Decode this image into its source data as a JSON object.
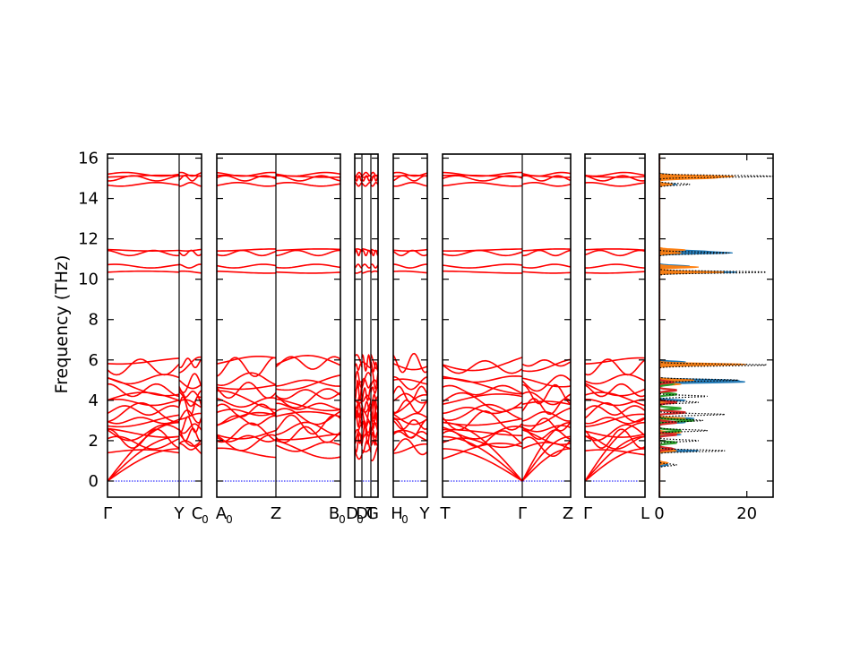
{
  "chart_data": [
    {
      "type": "line",
      "title": "",
      "xlabel": "",
      "ylabel": "Frequency (THz)",
      "ylim": [
        -0.8,
        16.2
      ],
      "yticks": [
        0,
        2,
        4,
        6,
        8,
        10,
        12,
        14,
        16
      ],
      "ytick_labels": [
        "0",
        "2",
        "4",
        "6",
        "8",
        "10",
        "12",
        "14",
        "16"
      ],
      "grid": false,
      "segments": [
        {
          "start": "Γ",
          "end": "Y",
          "x_range": [
            0,
            1
          ],
          "end_label_shown": "Y"
        },
        {
          "start": "C₀",
          "end": "Z",
          "x_range": [
            0,
            1
          ]
        },
        {
          "start": "A₀",
          "end": "B₀",
          "x_range": [
            0,
            1
          ]
        },
        {
          "start": "D₀",
          "end": "D",
          "x_range": [
            0,
            1
          ]
        },
        {
          "start": "T",
          "end": "G",
          "x_range": [
            0,
            1
          ]
        },
        {
          "start": "H₀",
          "end": "Y",
          "x_range": [
            0,
            1
          ]
        },
        {
          "start": "T",
          "end": "Γ",
          "x_range": [
            0,
            1
          ]
        },
        {
          "start": "Γ",
          "end": "Z",
          "x_range": [
            0,
            1
          ]
        },
        {
          "start": "Γ",
          "end": "L",
          "x_range": [
            0,
            1
          ]
        }
      ],
      "tick_labels": [
        {
          "text": "Γ",
          "sub": ""
        },
        {
          "text": "Y",
          "sub": ""
        },
        {
          "text": "C",
          "sub": "0"
        },
        {
          "text": "A",
          "sub": "0"
        },
        {
          "text": "Z",
          "sub": ""
        },
        {
          "text": "B",
          "sub": "0"
        },
        {
          "text": "D",
          "sub": "0"
        },
        {
          "text": "D",
          "sub": ""
        },
        {
          "text": "T",
          "sub": ""
        },
        {
          "text": "G",
          "sub": ""
        },
        {
          "text": "H",
          "sub": "0"
        },
        {
          "text": "Y",
          "sub": ""
        },
        {
          "text": "T",
          "sub": ""
        },
        {
          "text": "Γ",
          "sub": ""
        },
        {
          "text": "Z",
          "sub": ""
        },
        {
          "text": "Γ",
          "sub": ""
        },
        {
          "text": "L",
          "sub": ""
        }
      ],
      "series": [
        {
          "color": "#ff0000",
          "description_values_at_gamma": [
            0,
            5.9,
            5.75,
            4.0,
            3.9,
            3.1,
            2.9,
            2.5,
            2.3,
            2.2,
            1.8,
            1.5,
            10.35,
            10.65,
            11.3,
            11.45,
            14.7,
            15.05,
            15.2
          ]
        },
        {
          "color": "#0000ff",
          "style": "dotted",
          "values": [
            0
          ]
        }
      ],
      "high_branches": [
        10.35,
        10.65,
        11.3,
        11.45,
        14.7,
        15.0,
        15.1,
        15.2
      ]
    },
    {
      "type": "area",
      "xlabel": "",
      "ylabel": "",
      "xlim": [
        0,
        26
      ],
      "xticks": [
        0,
        20
      ],
      "xtick_labels": [
        "0",
        "20"
      ],
      "ylim": [
        -0.8,
        16.2
      ],
      "series": [
        {
          "color": "#1f77b4",
          "peaks": [
            [
              15.15,
              4
            ],
            [
              15.05,
              5
            ],
            [
              14.7,
              4
            ],
            [
              11.4,
              9
            ],
            [
              11.3,
              16
            ],
            [
              10.65,
              7
            ],
            [
              10.35,
              18
            ],
            [
              5.9,
              6
            ],
            [
              5.75,
              10
            ],
            [
              5,
              16
            ],
            [
              4.9,
              18
            ],
            [
              4,
              6
            ],
            [
              3.1,
              8
            ],
            [
              2.9,
              6
            ],
            [
              2.3,
              5
            ],
            [
              1.5,
              9
            ],
            [
              0.8,
              2
            ]
          ]
        },
        {
          "color": "#ff7f0e",
          "peaks": [
            [
              15.1,
              16
            ],
            [
              15.0,
              11
            ],
            [
              14.7,
              3
            ],
            [
              11.45,
              6
            ],
            [
              11.3,
              5
            ],
            [
              10.6,
              9
            ],
            [
              10.35,
              15
            ],
            [
              5.8,
              13
            ],
            [
              5.75,
              10
            ],
            [
              5.0,
              8
            ],
            [
              4.8,
              5
            ],
            [
              3.9,
              4
            ],
            [
              3.1,
              6
            ],
            [
              2.4,
              5
            ],
            [
              1.5,
              4
            ],
            [
              0.9,
              2
            ]
          ]
        },
        {
          "color": "#2ca02c",
          "peaks": [
            [
              4.8,
              3
            ],
            [
              4.3,
              4
            ],
            [
              3.6,
              5
            ],
            [
              3.0,
              8
            ],
            [
              2.5,
              5
            ],
            [
              1.9,
              4
            ]
          ]
        },
        {
          "color": "#d62728",
          "peaks": [
            [
              4.9,
              3
            ],
            [
              4.5,
              4
            ],
            [
              3.9,
              4
            ],
            [
              3.4,
              6
            ],
            [
              2.9,
              4
            ],
            [
              2.3,
              4
            ],
            [
              1.6,
              3
            ]
          ]
        }
      ],
      "total_dos": {
        "color": "#000000",
        "style": "dotted",
        "peaks": [
          [
            15.1,
            26
          ],
          [
            14.7,
            7
          ],
          [
            11.3,
            16
          ],
          [
            10.35,
            25
          ],
          [
            5.75,
            25
          ],
          [
            5.0,
            18
          ],
          [
            4.2,
            11
          ],
          [
            3.9,
            9
          ],
          [
            3.3,
            15
          ],
          [
            3.0,
            10
          ],
          [
            2.5,
            11
          ],
          [
            2.0,
            9
          ],
          [
            1.5,
            15
          ],
          [
            0.8,
            4
          ]
        ]
      }
    }
  ]
}
